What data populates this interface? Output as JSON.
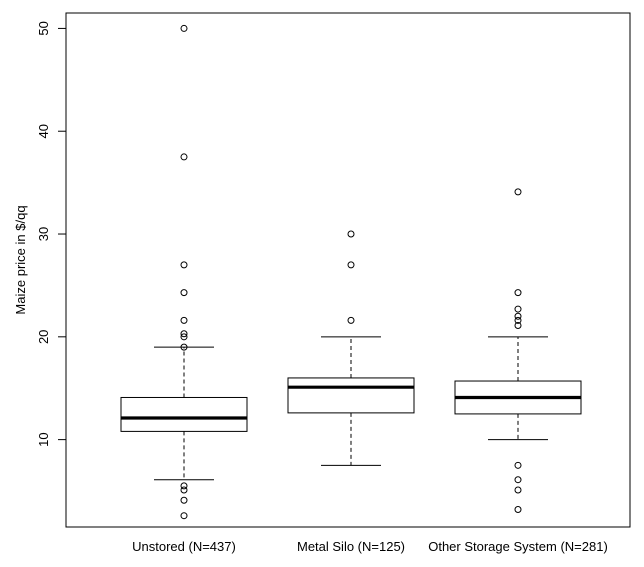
{
  "chart_data": {
    "type": "boxplot",
    "title": "",
    "xlabel": "",
    "ylabel": "Maize price in $/qq",
    "ylim": [
      1.5,
      51.5
    ],
    "y_ticks": [
      10,
      20,
      30,
      40,
      50
    ],
    "y_tick_labels": [
      "10",
      "20",
      "30",
      "40",
      "50"
    ],
    "grid": false,
    "categories": [
      "Unstored (N=437)",
      "Metal Silo (N=125)",
      "Other Storage System (N=281)"
    ],
    "boxes": [
      {
        "name": "Unstored (N=437)",
        "whisker_low": 6.1,
        "q1": 10.8,
        "median": 12.1,
        "q3": 14.1,
        "whisker_high": 19.0,
        "outliers": [
          2.6,
          4.1,
          5.1,
          5.5,
          19.0,
          20.0,
          20.3,
          21.6,
          24.3,
          27.0,
          37.5,
          50.0
        ]
      },
      {
        "name": "Metal Silo (N=125)",
        "whisker_low": 7.5,
        "q1": 12.6,
        "median": 15.1,
        "q3": 16.0,
        "whisker_high": 20.0,
        "outliers": [
          21.6,
          27.0,
          30.0
        ]
      },
      {
        "name": "Other Storage System (N=281)",
        "whisker_low": 10.0,
        "q1": 12.5,
        "median": 14.1,
        "q3": 15.7,
        "whisker_high": 20.0,
        "outliers": [
          3.2,
          5.1,
          6.1,
          7.5,
          21.1,
          21.6,
          22.0,
          22.7,
          24.3,
          34.1
        ]
      }
    ]
  }
}
